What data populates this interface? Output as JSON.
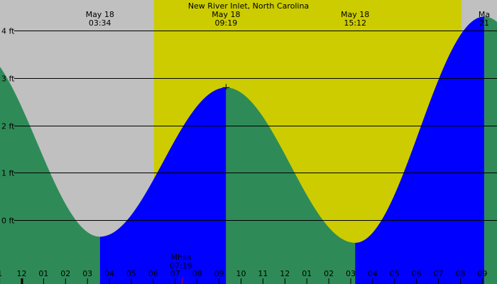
{
  "colors": {
    "night": "#c0c0c0",
    "day": "#cccc00",
    "falling": "#2e8b57",
    "rising": "#0000ff",
    "grid": "#000000",
    "moonrise_tick": "#cc0000"
  },
  "chart_data": {
    "type": "area",
    "title": "New River Inlet, North Carolina",
    "xlabel": "",
    "ylabel": "",
    "y_unit": "ft",
    "ylim": [
      -1.35,
      4.65
    ],
    "y_ticks": [
      {
        "value": 4,
        "label": "4 ft"
      },
      {
        "value": 3,
        "label": "3 ft"
      },
      {
        "value": 2,
        "label": "2 ft"
      },
      {
        "value": 1,
        "label": "1 ft"
      },
      {
        "value": 0,
        "label": "0 ft"
      }
    ],
    "x_ticks_hours": [
      -1,
      0,
      1,
      2,
      3,
      4,
      5,
      6,
      7,
      8,
      9,
      10,
      11,
      12,
      13,
      14,
      15,
      16,
      17,
      18,
      19,
      20,
      21
    ],
    "x_tick_labels": [
      "1",
      "12",
      "01",
      "02",
      "03",
      "04",
      "05",
      "06",
      "07",
      "08",
      "09",
      "10",
      "11",
      "12",
      "01",
      "02",
      "03",
      "04",
      "05",
      "06",
      "07",
      "08",
      "09"
    ],
    "daylight": {
      "start": "06:02",
      "end": "20:03"
    },
    "tide_events": [
      {
        "date": "May 18",
        "time": "03:34",
        "type": "low",
        "height_ft": -0.35
      },
      {
        "date": "May 18",
        "time": "09:19",
        "type": "high",
        "height_ft": 2.8
      },
      {
        "date": "May 18",
        "time": "15:12",
        "type": "low",
        "height_ft": -0.48
      },
      {
        "date": "Ma",
        "time": "21",
        "type": "high",
        "height_ft": 4.3
      }
    ],
    "curve_start": {
      "time": "23:20",
      "height_ft": 3.35
    },
    "curve_end": {
      "time": "22:20",
      "height_ft": 4.05
    },
    "moon_event": {
      "label": "Mhsa",
      "time": "07:19"
    }
  }
}
